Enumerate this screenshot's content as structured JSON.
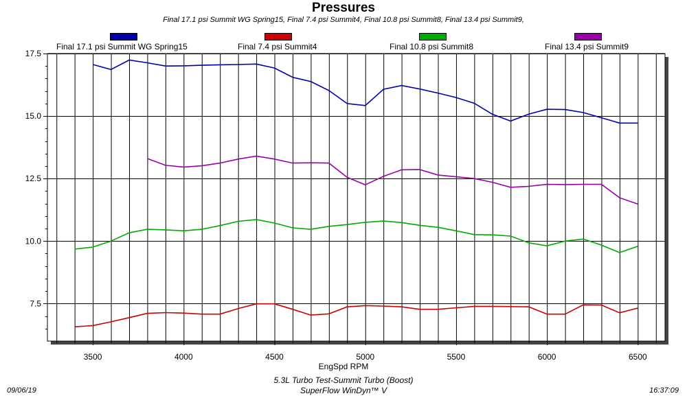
{
  "chart_data": {
    "type": "line",
    "title": "Pressures",
    "subtitle": "Final 17.1 psi Summit WG Spring15, Final 7.4 psi Summit4, Final 10.8 psi Summit8, Final 13.4 psi Summit9,",
    "xlabel": "EngSpd RPM",
    "ylabel": "",
    "xlim": [
      3250,
      6650
    ],
    "ylim": [
      6.0,
      17.5
    ],
    "x_ticks": [
      3500,
      4000,
      4500,
      5000,
      5500,
      6000,
      6500
    ],
    "y_ticks": [
      7.5,
      10.0,
      12.5,
      15.0,
      17.5
    ],
    "y_tick_labels": [
      "7.5",
      "10.0",
      "12.5",
      "15.0",
      "17.5"
    ],
    "grid": true,
    "legend_position": "top",
    "series": [
      {
        "name": "Final 17.1 psi Summit WG Spring15",
        "color": "#0000aa",
        "x": [
          3500,
          3600,
          3700,
          3800,
          3900,
          4000,
          4100,
          4200,
          4300,
          4400,
          4500,
          4600,
          4700,
          4800,
          4900,
          5000,
          5100,
          5200,
          5300,
          5400,
          5500,
          5600,
          5700,
          5800,
          5900,
          6000,
          6100,
          6200,
          6300,
          6400,
          6500
        ],
        "values": [
          17.06,
          16.86,
          17.24,
          17.13,
          17.0,
          17.01,
          17.03,
          17.05,
          17.06,
          17.08,
          16.92,
          16.55,
          16.38,
          16.02,
          15.5,
          15.42,
          16.07,
          16.22,
          16.08,
          15.92,
          15.74,
          15.51,
          15.07,
          14.8,
          15.08,
          15.27,
          15.26,
          15.14,
          14.93,
          14.72,
          14.72
        ]
      },
      {
        "name": "Final 7.4 psi Summit4",
        "color": "#cc0000",
        "x": [
          3400,
          3500,
          3600,
          3700,
          3800,
          3900,
          4000,
          4100,
          4200,
          4300,
          4400,
          4500,
          4600,
          4700,
          4800,
          4900,
          5000,
          5100,
          5200,
          5300,
          5400,
          5500,
          5600,
          5700,
          5800,
          5900,
          6000,
          6100,
          6200,
          6300,
          6400,
          6500
        ],
        "values": [
          6.57,
          6.62,
          6.77,
          6.94,
          7.11,
          7.14,
          7.12,
          7.08,
          7.08,
          7.3,
          7.49,
          7.49,
          7.27,
          7.04,
          7.09,
          7.37,
          7.42,
          7.4,
          7.37,
          7.27,
          7.27,
          7.33,
          7.39,
          7.39,
          7.38,
          7.37,
          7.08,
          7.08,
          7.45,
          7.44,
          7.13,
          7.32
        ]
      },
      {
        "name": "Final 10.8 psi Summit8",
        "color": "#00aa00",
        "x": [
          3400,
          3500,
          3600,
          3700,
          3800,
          3900,
          4000,
          4100,
          4200,
          4300,
          4400,
          4500,
          4600,
          4700,
          4800,
          4900,
          5000,
          5100,
          5200,
          5300,
          5400,
          5500,
          5600,
          5700,
          5800,
          5900,
          6000,
          6100,
          6200,
          6300,
          6400,
          6500
        ],
        "values": [
          9.68,
          9.76,
          10.0,
          10.33,
          10.47,
          10.45,
          10.41,
          10.47,
          10.62,
          10.79,
          10.86,
          10.72,
          10.53,
          10.47,
          10.59,
          10.66,
          10.75,
          10.8,
          10.74,
          10.63,
          10.55,
          10.41,
          10.26,
          10.25,
          10.2,
          9.93,
          9.81,
          10.0,
          10.08,
          9.84,
          9.54,
          9.79
        ]
      },
      {
        "name": "Final 13.4 psi Summit9",
        "color": "#9900aa",
        "x": [
          3800,
          3900,
          4000,
          4100,
          4200,
          4300,
          4400,
          4500,
          4600,
          4700,
          4800,
          4900,
          5000,
          5100,
          5200,
          5300,
          5400,
          5500,
          5600,
          5700,
          5800,
          5900,
          6000,
          6100,
          6200,
          6300,
          6400,
          6500
        ],
        "values": [
          13.3,
          13.03,
          12.96,
          13.01,
          13.12,
          13.28,
          13.4,
          13.28,
          13.12,
          13.13,
          13.12,
          12.55,
          12.25,
          12.59,
          12.85,
          12.86,
          12.64,
          12.57,
          12.5,
          12.35,
          12.15,
          12.19,
          12.27,
          12.26,
          12.27,
          12.27,
          11.73,
          11.48
        ]
      }
    ]
  },
  "footer": {
    "test_name": "5.3L Turbo Test-Summit Turbo (Boost)",
    "software": "SuperFlow WinDyn™ V",
    "date": "09/06/19",
    "time": "16:37:09"
  }
}
